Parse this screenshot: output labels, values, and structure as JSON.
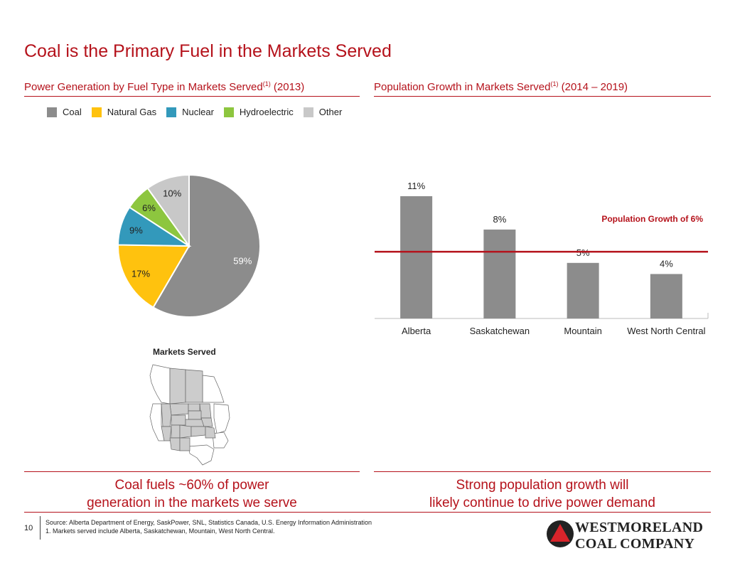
{
  "page": {
    "title": "Coal is the Primary Fuel in the Markets Served",
    "number": "10"
  },
  "left_section": {
    "title": "Power Generation by Fuel Type in Markets Served",
    "title_sup": "(1)",
    "title_suffix": " (2013)",
    "map_title": "Markets Served",
    "takeaway_line1": "Coal fuels ~60% of power",
    "takeaway_line2": "generation in the markets we serve"
  },
  "right_section": {
    "title": "Population Growth in Markets Served",
    "title_sup": "(1)",
    "title_suffix": " (2014 – 2019)",
    "takeaway_line1": "Strong population growth will",
    "takeaway_line2": "likely continue to drive power demand"
  },
  "footer": {
    "source": "Source: Alberta Department of Energy, SaskPower, SNL, Statistics Canada, U.S. Energy Information Administration",
    "note": "1. Markets served include Alberta, Saskatchewan, Mountain, West North Central."
  },
  "logo": {
    "line1": "WESTMORELAND",
    "line2": "COAL COMPANY"
  },
  "colors": {
    "accent": "#b5121b",
    "coal": "#8c8c8c",
    "natural_gas": "#ffc20e",
    "nuclear": "#3399bb",
    "hydroelectric": "#8dc63f",
    "other": "#c8c8c8",
    "bar": "#8c8c8c",
    "map_fill": "#cccccc"
  },
  "chart_data": [
    {
      "type": "pie",
      "title": "Power Generation by Fuel Type in Markets Served(1) (2013)",
      "legend_position": "top",
      "slices": [
        {
          "name": "Coal",
          "value": 59,
          "label": "59%",
          "color": "#8c8c8c"
        },
        {
          "name": "Natural Gas",
          "value": 17,
          "label": "17%",
          "color": "#ffc20e"
        },
        {
          "name": "Nuclear",
          "value": 9,
          "label": "9%",
          "color": "#3399bb"
        },
        {
          "name": "Hydroelectric",
          "value": 6,
          "label": "6%",
          "color": "#8dc63f"
        },
        {
          "name": "Other",
          "value": 10,
          "label": "10%",
          "color": "#c8c8c8"
        }
      ]
    },
    {
      "type": "bar",
      "title": "Population Growth in Markets Served(1) (2014 – 2019)",
      "categories": [
        "Alberta",
        "Saskatchewan",
        "Mountain",
        "West North Central"
      ],
      "values": [
        11,
        8,
        5,
        4
      ],
      "value_labels": [
        "11%",
        "8%",
        "5%",
        "4%"
      ],
      "ylim": [
        0,
        11
      ],
      "grid": false,
      "reference_line": {
        "value": 6,
        "label": "Population Growth of 6%"
      }
    }
  ]
}
